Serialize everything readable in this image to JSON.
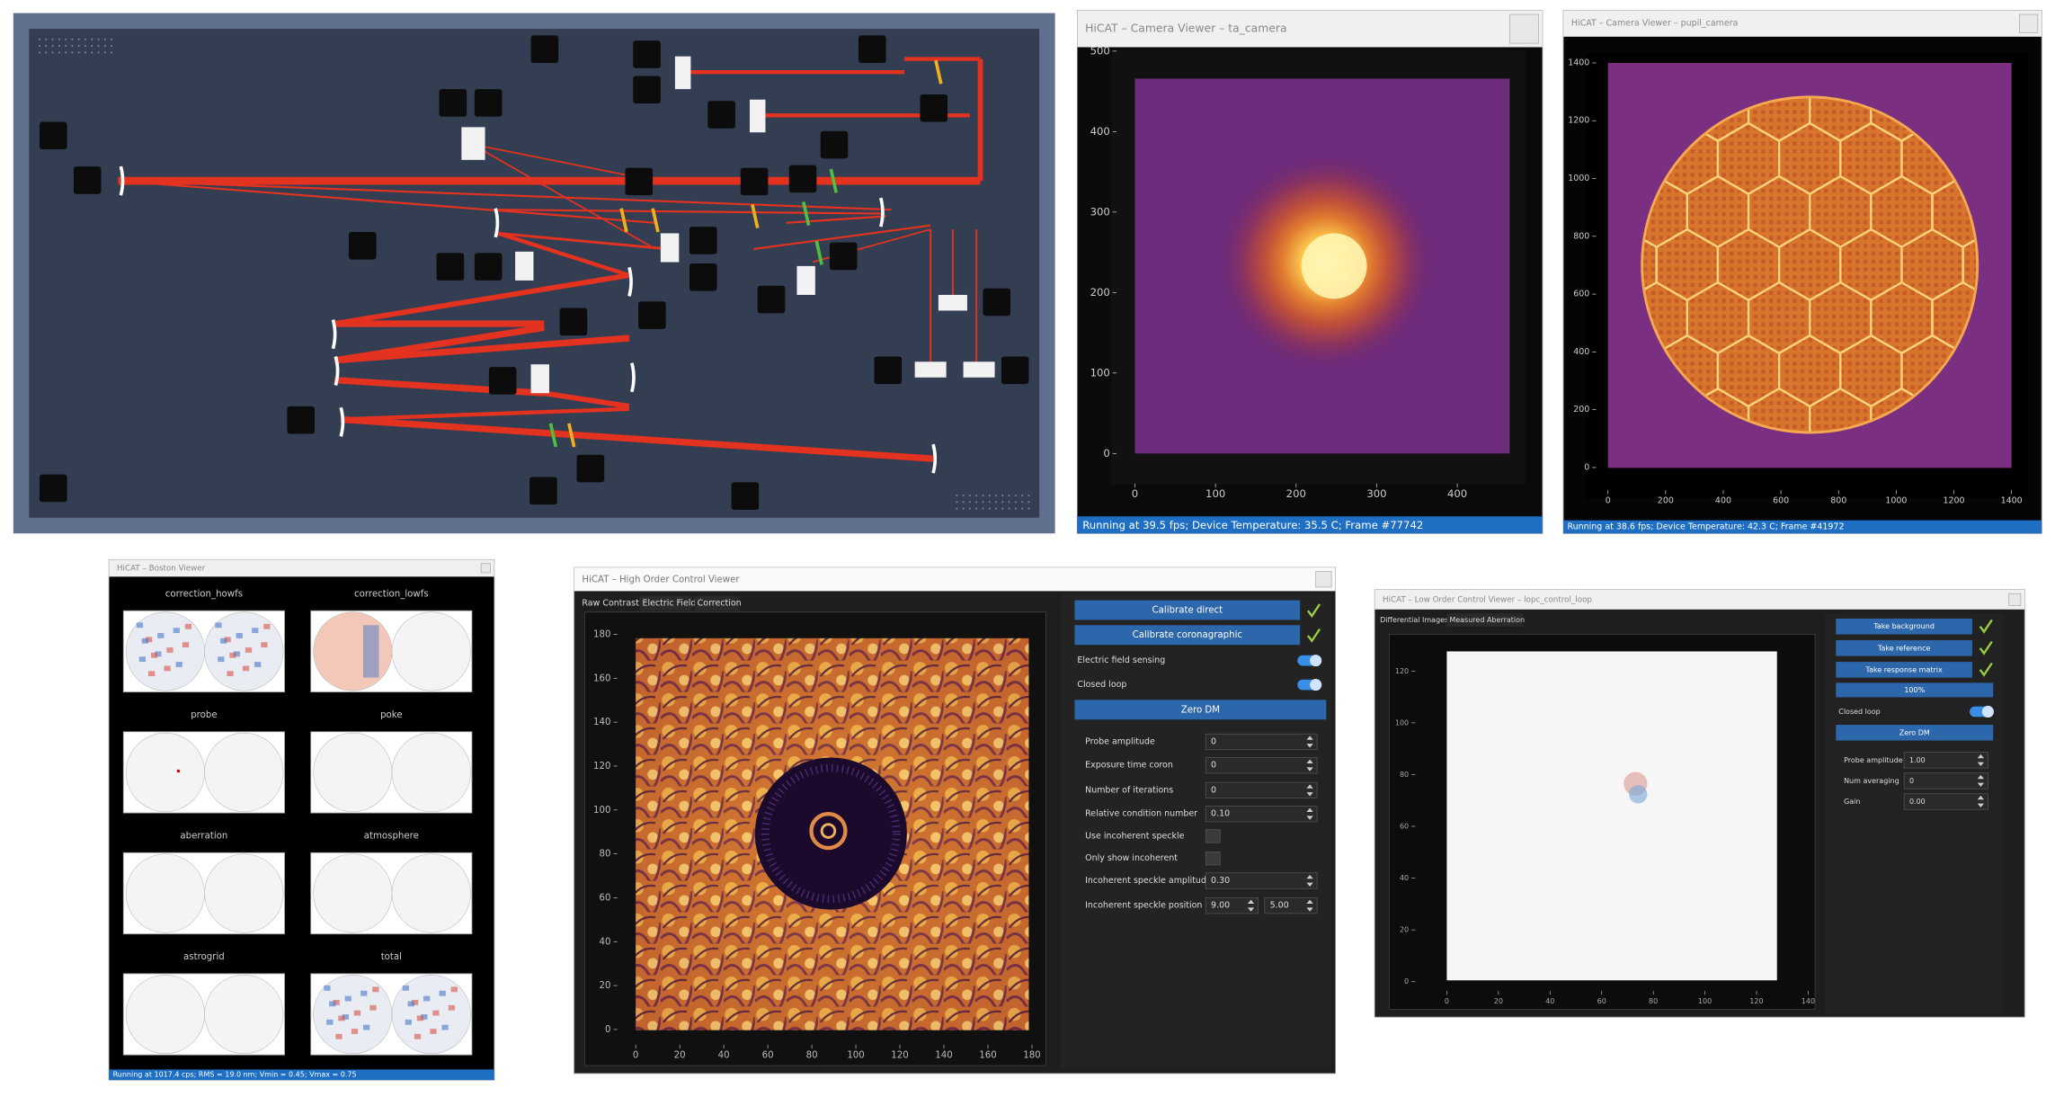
{
  "ta_camera": {
    "title": "HiCAT – Camera Viewer – ta_camera",
    "yticks": [
      500,
      400,
      300,
      200,
      100,
      0
    ],
    "xticks": [
      0,
      100,
      200,
      300,
      400
    ],
    "status": "Running at 39.5 fps; Device Temperature: 35.5 C; Frame #77742"
  },
  "pupil_camera": {
    "title": "HiCAT – Camera Viewer – pupil_camera",
    "yticks": [
      1400,
      1200,
      1000,
      800,
      600,
      400,
      200,
      0
    ],
    "xticks": [
      0,
      200,
      400,
      600,
      800,
      1000,
      1200,
      1400
    ],
    "status": "Running at 38.6 fps; Device Temperature: 42.3 C; Frame #41972"
  },
  "boston_viewer": {
    "title": "HiCAT – Boston Viewer",
    "panels": [
      "correction_howfs",
      "correction_lowfs",
      "probe",
      "poke",
      "aberration",
      "atmosphere",
      "astrogrid",
      "total"
    ],
    "status": "Running at 1017.4 cps; RMS = 19.0 nm; Vmin = 0.45; Vmax = 0.75"
  },
  "high_order": {
    "title": "HiCAT – High Order Control Viewer",
    "tabs": [
      "Raw Contrast",
      "Electric Field",
      "Correction"
    ],
    "yticks": [
      180,
      160,
      140,
      120,
      100,
      80,
      60,
      40,
      20,
      0
    ],
    "xticks": [
      0,
      20,
      40,
      60,
      80,
      100,
      120,
      140,
      160,
      180
    ],
    "buttons": [
      "Calibrate direct",
      "Calibrate coronagraphic"
    ],
    "toggles": [
      "Electric field sensing",
      "Closed loop"
    ],
    "zero_dm": "Zero DM",
    "fields": [
      {
        "label": "Probe amplitude",
        "value": "0"
      },
      {
        "label": "Exposure time coron",
        "value": "0"
      },
      {
        "label": "Number of iterations",
        "value": "0"
      },
      {
        "label": "Relative condition number",
        "value": "0.10"
      },
      {
        "label": "Use incoherent speckle"
      },
      {
        "label": "Only show incoherent"
      },
      {
        "label": "Incoherent speckle amplitude",
        "value": "0.30"
      },
      {
        "label": "Incoherent speckle position",
        "values": [
          "9.00",
          "5.00"
        ]
      }
    ]
  },
  "low_order": {
    "title": "HiCAT – Low Order Control Viewer – lopc_control_loop",
    "tabs": [
      "Differential Images",
      "Measured Aberration"
    ],
    "yticks": [
      120,
      100,
      80,
      60,
      40,
      20,
      0
    ],
    "xticks": [
      0,
      20,
      40,
      60,
      80,
      100,
      120,
      140
    ],
    "buttons": [
      "Take background",
      "Take reference",
      "Take response matrix"
    ],
    "progress": "100%",
    "toggle": "Closed loop",
    "zero_dm": "Zero DM",
    "fields": [
      {
        "label": "Probe amplitude",
        "value": "1.00"
      },
      {
        "label": "Num averaging",
        "value": "0"
      },
      {
        "label": "Gain",
        "value": "0.00"
      }
    ]
  }
}
